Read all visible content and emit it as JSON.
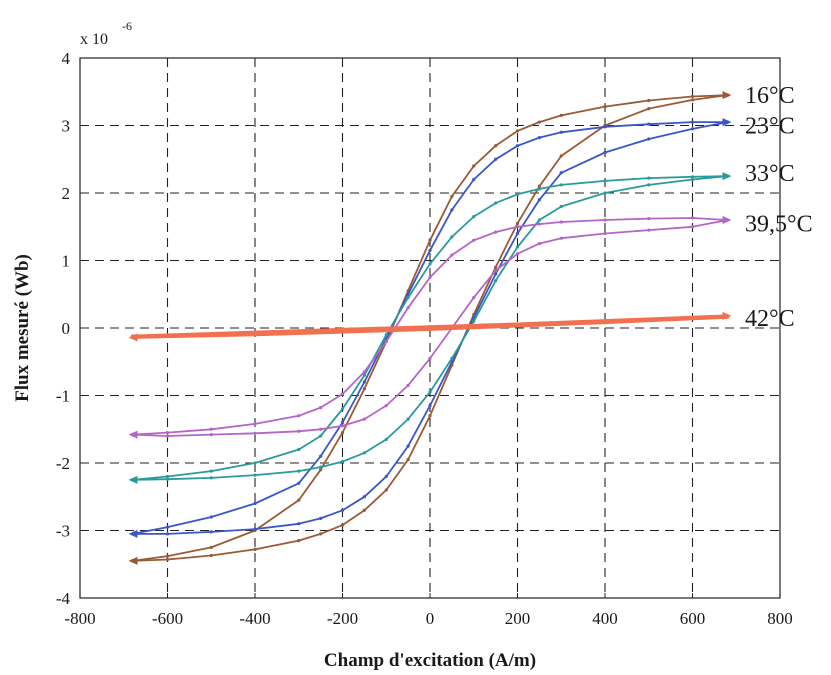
{
  "chart_data": {
    "type": "line",
    "title": "",
    "xlabel": "Champ d'excitation (A/m)",
    "ylabel": "Flux mesuré (Wb)",
    "y_multiplier": {
      "base": "x 10",
      "exponent": "-6"
    },
    "xlim": [
      -800,
      800
    ],
    "ylim": [
      -4,
      4
    ],
    "x_ticks": [
      -800,
      -600,
      -400,
      -200,
      0,
      200,
      400,
      600,
      800
    ],
    "y_ticks": [
      -4,
      -3,
      -2,
      -1,
      0,
      1,
      2,
      3,
      4
    ],
    "x_tick_labels": [
      "-800",
      "-600",
      "-400",
      "-200",
      "0",
      "200",
      "400",
      "600",
      "800"
    ],
    "y_tick_labels": [
      "-4",
      "-3",
      "-2",
      "-1",
      "0",
      "1",
      "2",
      "3",
      "4"
    ],
    "grid": true,
    "grid_style": "dashed",
    "series": [
      {
        "name": "16°C",
        "color": "#9a5a36",
        "upper": {
          "x": [
            -680,
            -600,
            -500,
            -400,
            -300,
            -250,
            -200,
            -150,
            -100,
            -50,
            0,
            50,
            100,
            150,
            200,
            250,
            300,
            400,
            500,
            600,
            680
          ],
          "y": [
            -3.45,
            -3.38,
            -3.25,
            -3.0,
            -2.55,
            -2.1,
            -1.55,
            -0.9,
            -0.2,
            0.55,
            1.3,
            1.95,
            2.4,
            2.7,
            2.92,
            3.05,
            3.15,
            3.28,
            3.37,
            3.43,
            3.45
          ]
        },
        "lower": {
          "x": [
            -680,
            -600,
            -500,
            -400,
            -300,
            -250,
            -200,
            -150,
            -100,
            -50,
            0,
            50,
            100,
            150,
            200,
            250,
            300,
            400,
            500,
            600,
            680
          ],
          "y": [
            -3.45,
            -3.43,
            -3.37,
            -3.28,
            -3.15,
            -3.05,
            -2.92,
            -2.7,
            -2.4,
            -1.95,
            -1.3,
            -0.55,
            0.2,
            0.9,
            1.55,
            2.1,
            2.55,
            3.0,
            3.25,
            3.38,
            3.45
          ]
        }
      },
      {
        "name": "23°C",
        "color": "#3a56c8",
        "upper": {
          "x": [
            -680,
            -600,
            -500,
            -400,
            -300,
            -250,
            -200,
            -150,
            -100,
            -50,
            0,
            50,
            100,
            150,
            200,
            250,
            300,
            400,
            500,
            600,
            680
          ],
          "y": [
            -3.05,
            -2.95,
            -2.8,
            -2.6,
            -2.3,
            -1.9,
            -1.4,
            -0.8,
            -0.15,
            0.5,
            1.15,
            1.75,
            2.2,
            2.5,
            2.7,
            2.82,
            2.9,
            2.98,
            3.02,
            3.05,
            3.05
          ]
        },
        "lower": {
          "x": [
            -680,
            -600,
            -500,
            -400,
            -300,
            -250,
            -200,
            -150,
            -100,
            -50,
            0,
            50,
            100,
            150,
            200,
            250,
            300,
            400,
            500,
            600,
            680
          ],
          "y": [
            -3.05,
            -3.05,
            -3.02,
            -2.98,
            -2.9,
            -2.82,
            -2.7,
            -2.5,
            -2.2,
            -1.75,
            -1.15,
            -0.5,
            0.15,
            0.8,
            1.4,
            1.9,
            2.3,
            2.6,
            2.8,
            2.95,
            3.05
          ]
        }
      },
      {
        "name": "33°C",
        "color": "#2a9a9a",
        "upper": {
          "x": [
            -680,
            -600,
            -500,
            -400,
            -300,
            -250,
            -200,
            -150,
            -100,
            -50,
            0,
            50,
            100,
            150,
            200,
            250,
            300,
            400,
            500,
            600,
            680
          ],
          "y": [
            -2.25,
            -2.2,
            -2.12,
            -2.0,
            -1.8,
            -1.6,
            -1.2,
            -0.7,
            -0.1,
            0.45,
            0.95,
            1.35,
            1.65,
            1.85,
            1.98,
            2.06,
            2.12,
            2.18,
            2.22,
            2.24,
            2.25
          ]
        },
        "lower": {
          "x": [
            -680,
            -600,
            -500,
            -400,
            -300,
            -250,
            -200,
            -150,
            -100,
            -50,
            0,
            50,
            100,
            150,
            200,
            250,
            300,
            400,
            500,
            600,
            680
          ],
          "y": [
            -2.25,
            -2.24,
            -2.22,
            -2.18,
            -2.12,
            -2.06,
            -1.98,
            -1.85,
            -1.65,
            -1.35,
            -0.95,
            -0.45,
            0.1,
            0.7,
            1.2,
            1.6,
            1.8,
            2.0,
            2.12,
            2.2,
            2.25
          ]
        }
      },
      {
        "name": "39,5°C",
        "color": "#b565c8",
        "upper": {
          "x": [
            -680,
            -600,
            -500,
            -400,
            -300,
            -250,
            -200,
            -150,
            -100,
            -50,
            0,
            50,
            100,
            150,
            200,
            250,
            300,
            400,
            500,
            600,
            680
          ],
          "y": [
            -1.58,
            -1.55,
            -1.5,
            -1.42,
            -1.3,
            -1.18,
            -0.98,
            -0.65,
            -0.2,
            0.3,
            0.75,
            1.08,
            1.3,
            1.42,
            1.5,
            1.54,
            1.57,
            1.6,
            1.62,
            1.63,
            1.6
          ]
        },
        "lower": {
          "x": [
            -680,
            -600,
            -500,
            -400,
            -300,
            -250,
            -200,
            -150,
            -100,
            -50,
            0,
            50,
            100,
            150,
            200,
            250,
            300,
            400,
            500,
            600,
            680
          ],
          "y": [
            -1.58,
            -1.6,
            -1.58,
            -1.56,
            -1.53,
            -1.5,
            -1.45,
            -1.35,
            -1.15,
            -0.85,
            -0.45,
            0.0,
            0.45,
            0.85,
            1.1,
            1.25,
            1.33,
            1.4,
            1.45,
            1.5,
            1.6
          ]
        }
      },
      {
        "name": "42°C",
        "color": "#f07050",
        "upper": {
          "x": [
            -680,
            -400,
            -200,
            0,
            200,
            400,
            680
          ],
          "y": [
            -0.12,
            -0.06,
            -0.02,
            0.02,
            0.06,
            0.11,
            0.18
          ]
        },
        "lower": {
          "x": [
            -680,
            -400,
            -200,
            0,
            200,
            400,
            680
          ],
          "y": [
            -0.14,
            -0.1,
            -0.06,
            -0.02,
            0.03,
            0.08,
            0.16
          ]
        }
      }
    ],
    "series_label_positions": [
      {
        "name": "16°C",
        "y": 3.45
      },
      {
        "name": "23°C",
        "y": 3.0
      },
      {
        "name": "33°C",
        "y": 2.3
      },
      {
        "name": "39,5°C",
        "y": 1.55
      },
      {
        "name": "42°C",
        "y": 0.15
      }
    ]
  }
}
